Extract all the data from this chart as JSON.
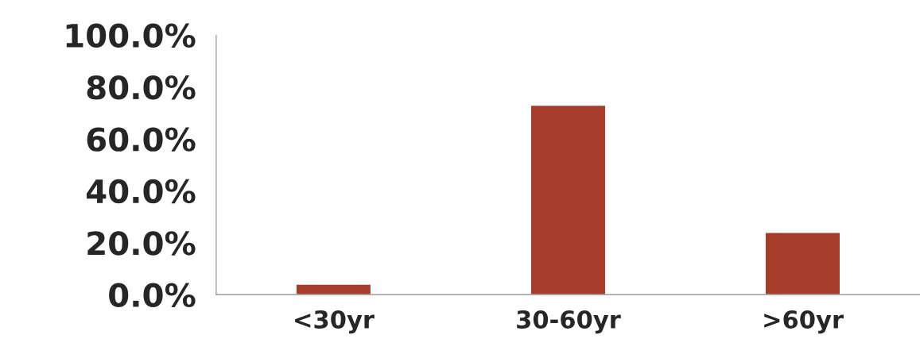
{
  "chart_data": {
    "type": "bar",
    "categories": [
      "<30yr",
      "30-60yr",
      ">60yr"
    ],
    "values": [
      4.0,
      73.0,
      24.0
    ],
    "color": "#a83c2a",
    "ylim": [
      0,
      100
    ],
    "yticks": [
      {
        "value": 0,
        "label": "0.0%"
      },
      {
        "value": 20,
        "label": "20.0%"
      },
      {
        "value": 40,
        "label": "40.0%"
      },
      {
        "value": 60,
        "label": "60.0%"
      },
      {
        "value": 80,
        "label": "80.0%"
      },
      {
        "value": 100,
        "label": "100.0%"
      }
    ],
    "grid": false,
    "legend": false
  }
}
